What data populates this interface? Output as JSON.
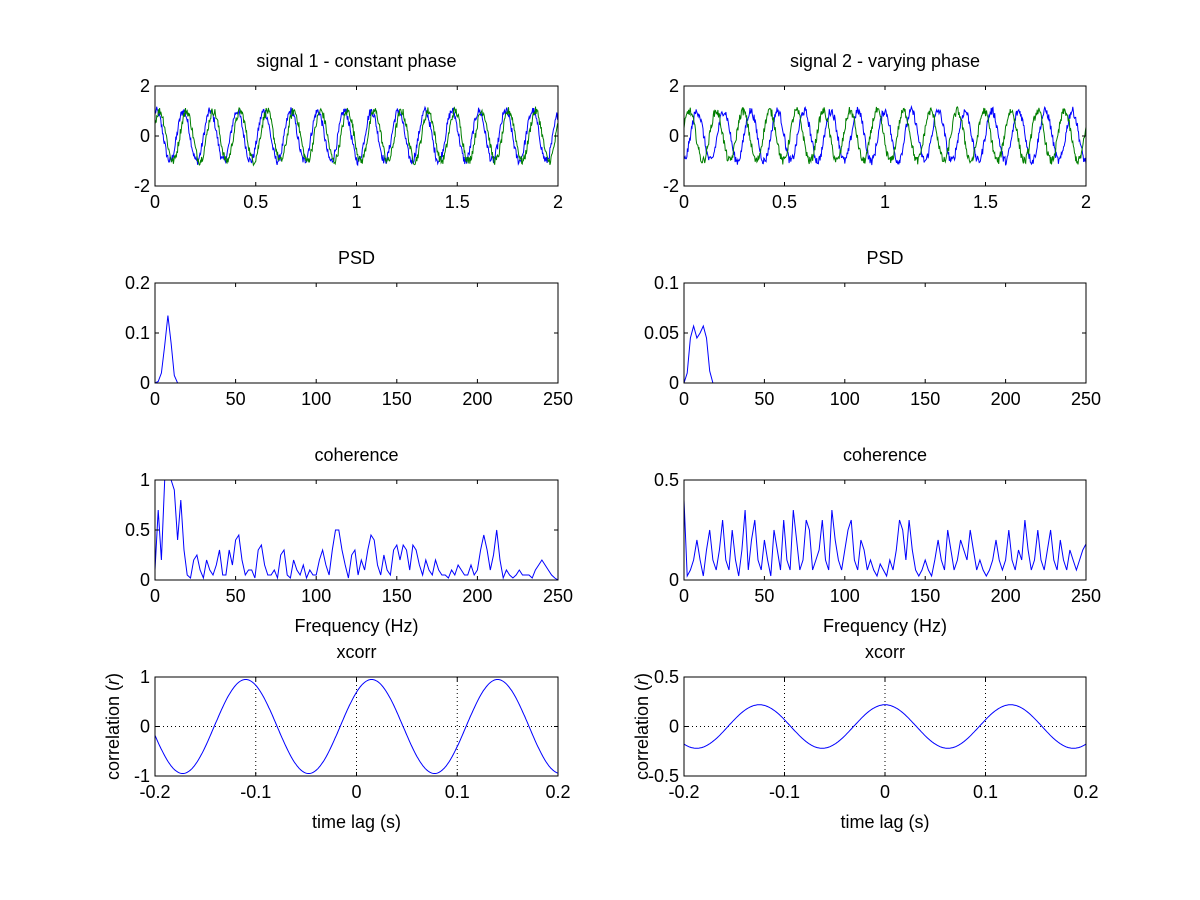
{
  "colors": {
    "series_blue": "#0000ff",
    "series_green": "#007f00",
    "axes": "#000000",
    "background": "#ffffff"
  },
  "chart_data": [
    {
      "panel": "signal-1",
      "type": "line",
      "title": "signal 1 - constant phase",
      "xlabel": "",
      "ylabel": "",
      "xlim": [
        0,
        2
      ],
      "ylim": [
        -2,
        2
      ],
      "xticks": [
        "0",
        "0.5",
        "1",
        "1.5",
        "2"
      ],
      "yticks": [
        "-2",
        "0",
        "2"
      ],
      "grid": false,
      "model": "sine",
      "noisy": true,
      "series": [
        {
          "color": "blue",
          "frequency_hz": 7.5,
          "amplitude": 1,
          "phase_rad": 1.2
        },
        {
          "color": "green",
          "frequency_hz": 7.5,
          "amplitude": 1,
          "phase_rad": 0.5
        }
      ]
    },
    {
      "panel": "signal-2",
      "type": "line",
      "title": "signal 2 - varying phase",
      "xlabel": "",
      "ylabel": "",
      "xlim": [
        0,
        2
      ],
      "ylim": [
        -2,
        2
      ],
      "xticks": [
        "0",
        "0.5",
        "1",
        "1.5",
        "2"
      ],
      "yticks": [
        "-2",
        "0",
        "2"
      ],
      "grid": false,
      "model": "sine",
      "noisy": true,
      "series": [
        {
          "color": "blue",
          "frequency_hz": 7.5,
          "amplitude": 1,
          "phase_rad": -1.5
        },
        {
          "color": "green",
          "frequency_hz": 7.5,
          "amplitude": 1,
          "phase_rad": 0.3
        }
      ]
    },
    {
      "panel": "psd-1",
      "type": "line",
      "title": "PSD",
      "xlabel": "",
      "ylabel": "",
      "xlim": [
        0,
        250
      ],
      "ylim": [
        0,
        0.2
      ],
      "xticks": [
        "0",
        "50",
        "100",
        "150",
        "200",
        "250"
      ],
      "yticks": [
        "0",
        "0.1",
        "0.2"
      ],
      "grid": false,
      "series": [
        {
          "color": "blue",
          "x": [
            0,
            2,
            4,
            6,
            8,
            10,
            12,
            14,
            250
          ],
          "y": [
            0,
            0.003,
            0.02,
            0.075,
            0.135,
            0.08,
            0.015,
            0,
            0
          ]
        }
      ]
    },
    {
      "panel": "psd-2",
      "type": "line",
      "title": "PSD",
      "xlabel": "",
      "ylabel": "",
      "xlim": [
        0,
        250
      ],
      "ylim": [
        0,
        0.1
      ],
      "xticks": [
        "0",
        "50",
        "100",
        "150",
        "200",
        "250"
      ],
      "yticks": [
        "0",
        "0.05",
        "0.1"
      ],
      "grid": false,
      "series": [
        {
          "color": "blue",
          "x": [
            0,
            2,
            4,
            6,
            8,
            10,
            12,
            14,
            16,
            18,
            250
          ],
          "y": [
            0,
            0.01,
            0.045,
            0.057,
            0.045,
            0.05,
            0.057,
            0.045,
            0.012,
            0,
            0
          ]
        }
      ]
    },
    {
      "panel": "coherence-1",
      "type": "line",
      "title": "coherence",
      "xlabel": "Frequency (Hz)",
      "ylabel": "",
      "xlim": [
        0,
        250
      ],
      "ylim": [
        0,
        1
      ],
      "xticks": [
        "0",
        "50",
        "100",
        "150",
        "200",
        "250"
      ],
      "yticks": [
        "0",
        "0.5",
        "1"
      ],
      "grid": false,
      "series": [
        {
          "color": "blue",
          "x": [
            0,
            2,
            4,
            6,
            8,
            10,
            12,
            14,
            16,
            18,
            20,
            22,
            24,
            26,
            28,
            30,
            32,
            34,
            36,
            38,
            40,
            42,
            44,
            46,
            48,
            50,
            52,
            54,
            56,
            58,
            60,
            62,
            64,
            66,
            68,
            70,
            72,
            74,
            76,
            78,
            80,
            82,
            84,
            86,
            88,
            90,
            92,
            94,
            96,
            98,
            100,
            102,
            104,
            106,
            108,
            110,
            112,
            114,
            116,
            118,
            120,
            122,
            124,
            126,
            128,
            130,
            132,
            134,
            136,
            138,
            140,
            142,
            144,
            146,
            148,
            150,
            152,
            154,
            156,
            158,
            160,
            162,
            164,
            166,
            168,
            170,
            172,
            174,
            176,
            178,
            180,
            182,
            184,
            186,
            188,
            190,
            192,
            194,
            196,
            198,
            200,
            202,
            204,
            206,
            208,
            210,
            212,
            214,
            216,
            218,
            220,
            222,
            224,
            226,
            228,
            230,
            232,
            234,
            236,
            238,
            240,
            242,
            244,
            246,
            248,
            250
          ],
          "y": [
            0.1,
            0.7,
            0.2,
            1.0,
            1.0,
            1.0,
            0.9,
            0.4,
            0.8,
            0.3,
            0.05,
            0.02,
            0.2,
            0.25,
            0.1,
            0.02,
            0.2,
            0.1,
            0.05,
            0.15,
            0.3,
            0.05,
            0.05,
            0.3,
            0.15,
            0.4,
            0.45,
            0.2,
            0.05,
            0.1,
            0.1,
            0.02,
            0.3,
            0.35,
            0.15,
            0.05,
            0.05,
            0.1,
            0.02,
            0.25,
            0.3,
            0.05,
            0.02,
            0.2,
            0.1,
            0.05,
            0.15,
            0.02,
            0.1,
            0.05,
            0.05,
            0.2,
            0.3,
            0.15,
            0.05,
            0.3,
            0.5,
            0.5,
            0.3,
            0.15,
            0.02,
            0.25,
            0.3,
            0.05,
            0.2,
            0.1,
            0.3,
            0.45,
            0.4,
            0.15,
            0.05,
            0.25,
            0.1,
            0.05,
            0.3,
            0.35,
            0.2,
            0.35,
            0.3,
            0.1,
            0.35,
            0.3,
            0.15,
            0.05,
            0.2,
            0.1,
            0.05,
            0.2,
            0.1,
            0.05,
            0.05,
            0.02,
            0.1,
            0.05,
            0.15,
            0.1,
            0.05,
            0.05,
            0.15,
            0.05,
            0.1,
            0.3,
            0.45,
            0.3,
            0.1,
            0.25,
            0.5,
            0.2,
            0.02,
            0.1,
            0.05,
            0.02,
            0.05,
            0.1,
            0.05,
            0.05,
            0.05,
            0.02,
            0.1,
            0.15,
            0.2,
            0.15,
            0.1,
            0.05,
            0.02,
            0.0
          ]
        }
      ]
    },
    {
      "panel": "coherence-2",
      "type": "line",
      "title": "coherence",
      "xlabel": "Frequency (Hz)",
      "ylabel": "",
      "xlim": [
        0,
        250
      ],
      "ylim": [
        0,
        0.5
      ],
      "xticks": [
        "0",
        "50",
        "100",
        "150",
        "200",
        "250"
      ],
      "yticks": [
        "0",
        "0.5"
      ],
      "grid": false,
      "series": [
        {
          "color": "blue",
          "x": [
            0,
            2,
            4,
            6,
            8,
            10,
            12,
            14,
            16,
            18,
            20,
            22,
            24,
            26,
            28,
            30,
            32,
            34,
            36,
            38,
            40,
            42,
            44,
            46,
            48,
            50,
            52,
            54,
            56,
            58,
            60,
            62,
            64,
            66,
            68,
            70,
            72,
            74,
            76,
            78,
            80,
            82,
            84,
            86,
            88,
            90,
            92,
            94,
            96,
            98,
            100,
            102,
            104,
            106,
            108,
            110,
            112,
            114,
            116,
            118,
            120,
            122,
            124,
            126,
            128,
            130,
            132,
            134,
            136,
            138,
            140,
            142,
            144,
            146,
            148,
            150,
            152,
            154,
            156,
            158,
            160,
            162,
            164,
            166,
            168,
            170,
            172,
            174,
            176,
            178,
            180,
            182,
            184,
            186,
            188,
            190,
            192,
            194,
            196,
            198,
            200,
            202,
            204,
            206,
            208,
            210,
            212,
            214,
            216,
            218,
            220,
            222,
            224,
            226,
            228,
            230,
            232,
            234,
            236,
            238,
            240,
            242,
            244,
            246,
            248,
            250
          ],
          "y": [
            0.4,
            0.02,
            0.05,
            0.1,
            0.2,
            0.1,
            0.02,
            0.15,
            0.25,
            0.1,
            0.05,
            0.15,
            0.3,
            0.1,
            0.05,
            0.25,
            0.1,
            0.02,
            0.15,
            0.35,
            0.05,
            0.2,
            0.3,
            0.1,
            0.05,
            0.2,
            0.1,
            0.02,
            0.25,
            0.15,
            0.05,
            0.3,
            0.1,
            0.05,
            0.35,
            0.2,
            0.05,
            0.1,
            0.3,
            0.25,
            0.05,
            0.1,
            0.15,
            0.3,
            0.1,
            0.05,
            0.35,
            0.2,
            0.1,
            0.05,
            0.15,
            0.25,
            0.3,
            0.1,
            0.05,
            0.2,
            0.15,
            0.05,
            0.1,
            0.05,
            0.02,
            0.08,
            0.05,
            0.02,
            0.1,
            0.05,
            0.15,
            0.3,
            0.25,
            0.1,
            0.3,
            0.15,
            0.05,
            0.02,
            0.05,
            0.1,
            0.05,
            0.02,
            0.1,
            0.2,
            0.1,
            0.05,
            0.25,
            0.15,
            0.05,
            0.1,
            0.2,
            0.15,
            0.1,
            0.25,
            0.15,
            0.05,
            0.1,
            0.05,
            0.02,
            0.05,
            0.1,
            0.2,
            0.1,
            0.05,
            0.1,
            0.25,
            0.1,
            0.05,
            0.15,
            0.1,
            0.3,
            0.15,
            0.05,
            0.1,
            0.25,
            0.1,
            0.05,
            0.15,
            0.25,
            0.1,
            0.05,
            0.2,
            0.1,
            0.05,
            0.15,
            0.1,
            0.05,
            0.1,
            0.15,
            0.18
          ]
        }
      ]
    },
    {
      "panel": "xcorr-1",
      "type": "line",
      "title": "xcorr",
      "xlabel": "time lag (s)",
      "ylabel": "correlation (r)",
      "xlim": [
        -0.2,
        0.2
      ],
      "ylim": [
        -1,
        1
      ],
      "xticks": [
        "-0.2",
        "-0.1",
        "0",
        "0.1",
        "0.2"
      ],
      "yticks": [
        "-1",
        "0",
        "1"
      ],
      "grid": true,
      "model": "cosine",
      "series": [
        {
          "color": "blue",
          "period_s": 0.125,
          "amplitude": 0.95,
          "peak_lag_s": 0.015
        }
      ]
    },
    {
      "panel": "xcorr-2",
      "type": "line",
      "title": "xcorr",
      "xlabel": "time lag (s)",
      "ylabel": "correlation (r)",
      "xlim": [
        -0.2,
        0.2
      ],
      "ylim": [
        -0.5,
        0.5
      ],
      "xticks": [
        "-0.2",
        "-0.1",
        "0",
        "0.1",
        "0.2"
      ],
      "yticks": [
        "-0.5",
        "0",
        "0.5"
      ],
      "grid": true,
      "model": "cosine",
      "series": [
        {
          "color": "blue",
          "period_s": 0.125,
          "amplitude": 0.22,
          "peak_lag_s": 0.0
        }
      ]
    }
  ]
}
